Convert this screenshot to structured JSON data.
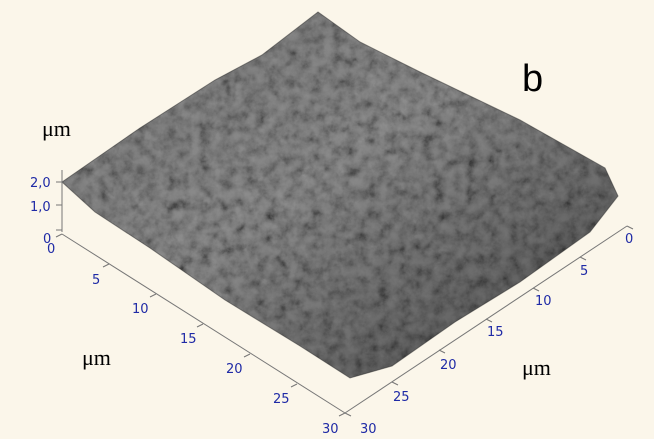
{
  "panel_label": "b",
  "units": {
    "z": "μm",
    "left": "μm",
    "right": "μm"
  },
  "z_ticks": [
    "2,0",
    "1,0",
    "0"
  ],
  "left_axis_ticks": [
    "0",
    "5",
    "10",
    "15",
    "20",
    "25",
    "30"
  ],
  "right_axis_ticks": [
    "0",
    "5",
    "10",
    "15",
    "20",
    "25",
    "30"
  ],
  "colors": {
    "background": "#fbf6ea",
    "tick_text": "#1f2aa6",
    "axis": "#777777"
  }
}
